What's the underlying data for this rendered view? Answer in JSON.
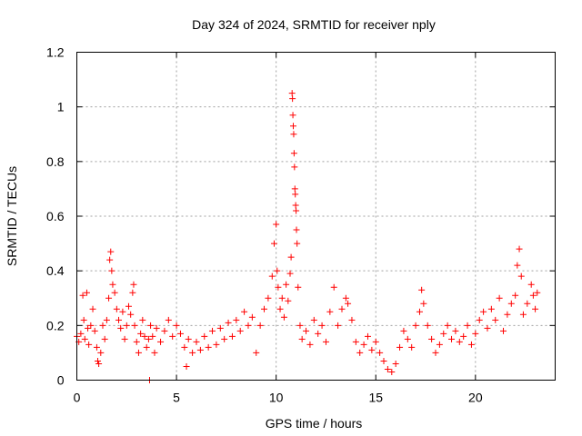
{
  "chart_data": {
    "type": "scatter",
    "title": "Day 324 of 2024, SRMTID for receiver nply",
    "xlabel": "GPS time / hours",
    "ylabel": "SRMTID / TECUs",
    "xlim": [
      0,
      24
    ],
    "ylim": [
      0,
      1.2
    ],
    "x_ticks": [
      0,
      5,
      10,
      15,
      20
    ],
    "x_tick_labels": [
      "0",
      "5",
      "10",
      "15",
      "20"
    ],
    "y_ticks": [
      0,
      0.2,
      0.4,
      0.6,
      0.8,
      1.0,
      1.2
    ],
    "y_tick_labels": [
      "0",
      "0.2",
      "0.4",
      "0.6",
      "0.8",
      "1",
      "1.2"
    ],
    "grid": true,
    "marker": "plus",
    "color": "#ff0000",
    "series": [
      {
        "name": "SRMTID",
        "points": [
          [
            0.0,
            0.16
          ],
          [
            0.1,
            0.14
          ],
          [
            0.2,
            0.17
          ],
          [
            0.3,
            0.31
          ],
          [
            0.35,
            0.22
          ],
          [
            0.4,
            0.15
          ],
          [
            0.5,
            0.32
          ],
          [
            0.55,
            0.19
          ],
          [
            0.6,
            0.13
          ],
          [
            0.7,
            0.2
          ],
          [
            0.8,
            0.26
          ],
          [
            0.9,
            0.18
          ],
          [
            1.0,
            0.12
          ],
          [
            1.05,
            0.07
          ],
          [
            1.1,
            0.06
          ],
          [
            1.2,
            0.1
          ],
          [
            1.3,
            0.2
          ],
          [
            1.4,
            0.15
          ],
          [
            1.5,
            0.22
          ],
          [
            1.6,
            0.3
          ],
          [
            1.65,
            0.44
          ],
          [
            1.7,
            0.47
          ],
          [
            1.75,
            0.4
          ],
          [
            1.8,
            0.35
          ],
          [
            1.9,
            0.32
          ],
          [
            2.0,
            0.26
          ],
          [
            2.1,
            0.22
          ],
          [
            2.2,
            0.19
          ],
          [
            2.3,
            0.25
          ],
          [
            2.4,
            0.15
          ],
          [
            2.5,
            0.2
          ],
          [
            2.6,
            0.27
          ],
          [
            2.7,
            0.24
          ],
          [
            2.8,
            0.32
          ],
          [
            2.85,
            0.35
          ],
          [
            2.9,
            0.2
          ],
          [
            3.0,
            0.14
          ],
          [
            3.1,
            0.1
          ],
          [
            3.2,
            0.17
          ],
          [
            3.3,
            0.22
          ],
          [
            3.4,
            0.16
          ],
          [
            3.5,
            0.12
          ],
          [
            3.6,
            0.15
          ],
          [
            3.65,
            0.0
          ],
          [
            3.7,
            0.2
          ],
          [
            3.8,
            0.16
          ],
          [
            3.9,
            0.1
          ],
          [
            4.0,
            0.19
          ],
          [
            4.2,
            0.14
          ],
          [
            4.4,
            0.18
          ],
          [
            4.6,
            0.22
          ],
          [
            4.8,
            0.16
          ],
          [
            5.0,
            0.2
          ],
          [
            5.2,
            0.17
          ],
          [
            5.4,
            0.12
          ],
          [
            5.5,
            0.05
          ],
          [
            5.6,
            0.15
          ],
          [
            5.8,
            0.1
          ],
          [
            6.0,
            0.14
          ],
          [
            6.2,
            0.11
          ],
          [
            6.4,
            0.16
          ],
          [
            6.6,
            0.12
          ],
          [
            6.8,
            0.18
          ],
          [
            7.0,
            0.13
          ],
          [
            7.2,
            0.19
          ],
          [
            7.4,
            0.15
          ],
          [
            7.6,
            0.21
          ],
          [
            7.8,
            0.16
          ],
          [
            8.0,
            0.22
          ],
          [
            8.2,
            0.18
          ],
          [
            8.4,
            0.25
          ],
          [
            8.6,
            0.2
          ],
          [
            8.8,
            0.23
          ],
          [
            9.0,
            0.1
          ],
          [
            9.2,
            0.2
          ],
          [
            9.4,
            0.26
          ],
          [
            9.6,
            0.3
          ],
          [
            9.8,
            0.38
          ],
          [
            9.9,
            0.5
          ],
          [
            10.0,
            0.57
          ],
          [
            10.05,
            0.4
          ],
          [
            10.1,
            0.34
          ],
          [
            10.2,
            0.26
          ],
          [
            10.3,
            0.3
          ],
          [
            10.4,
            0.23
          ],
          [
            10.5,
            0.35
          ],
          [
            10.6,
            0.29
          ],
          [
            10.7,
            0.39
          ],
          [
            10.75,
            0.45
          ],
          [
            10.8,
            1.05
          ],
          [
            10.82,
            1.03
          ],
          [
            10.84,
            0.97
          ],
          [
            10.86,
            0.93
          ],
          [
            10.88,
            0.9
          ],
          [
            10.9,
            0.83
          ],
          [
            10.92,
            0.78
          ],
          [
            10.94,
            0.7
          ],
          [
            10.96,
            0.68
          ],
          [
            10.98,
            0.64
          ],
          [
            11.0,
            0.62
          ],
          [
            11.02,
            0.55
          ],
          [
            11.05,
            0.5
          ],
          [
            11.1,
            0.34
          ],
          [
            11.2,
            0.2
          ],
          [
            11.3,
            0.15
          ],
          [
            11.5,
            0.18
          ],
          [
            11.7,
            0.13
          ],
          [
            11.9,
            0.22
          ],
          [
            12.1,
            0.17
          ],
          [
            12.3,
            0.2
          ],
          [
            12.5,
            0.14
          ],
          [
            12.7,
            0.25
          ],
          [
            12.9,
            0.34
          ],
          [
            13.1,
            0.2
          ],
          [
            13.3,
            0.26
          ],
          [
            13.5,
            0.3
          ],
          [
            13.6,
            0.28
          ],
          [
            13.8,
            0.22
          ],
          [
            14.0,
            0.14
          ],
          [
            14.2,
            0.1
          ],
          [
            14.4,
            0.13
          ],
          [
            14.6,
            0.16
          ],
          [
            14.8,
            0.11
          ],
          [
            15.0,
            0.14
          ],
          [
            15.2,
            0.1
          ],
          [
            15.4,
            0.07
          ],
          [
            15.6,
            0.04
          ],
          [
            15.8,
            0.03
          ],
          [
            16.0,
            0.06
          ],
          [
            16.2,
            0.12
          ],
          [
            16.4,
            0.18
          ],
          [
            16.6,
            0.15
          ],
          [
            16.8,
            0.12
          ],
          [
            17.0,
            0.2
          ],
          [
            17.2,
            0.25
          ],
          [
            17.3,
            0.33
          ],
          [
            17.4,
            0.28
          ],
          [
            17.6,
            0.2
          ],
          [
            17.8,
            0.15
          ],
          [
            18.0,
            0.1
          ],
          [
            18.2,
            0.13
          ],
          [
            18.4,
            0.17
          ],
          [
            18.6,
            0.2
          ],
          [
            18.8,
            0.15
          ],
          [
            19.0,
            0.18
          ],
          [
            19.2,
            0.14
          ],
          [
            19.4,
            0.16
          ],
          [
            19.6,
            0.2
          ],
          [
            19.8,
            0.13
          ],
          [
            20.0,
            0.17
          ],
          [
            20.2,
            0.22
          ],
          [
            20.4,
            0.25
          ],
          [
            20.6,
            0.19
          ],
          [
            20.8,
            0.26
          ],
          [
            21.0,
            0.22
          ],
          [
            21.2,
            0.3
          ],
          [
            21.4,
            0.18
          ],
          [
            21.6,
            0.24
          ],
          [
            21.8,
            0.28
          ],
          [
            22.0,
            0.31
          ],
          [
            22.1,
            0.42
          ],
          [
            22.2,
            0.48
          ],
          [
            22.3,
            0.38
          ],
          [
            22.4,
            0.24
          ],
          [
            22.6,
            0.28
          ],
          [
            22.8,
            0.35
          ],
          [
            22.9,
            0.31
          ],
          [
            23.0,
            0.26
          ],
          [
            23.1,
            0.32
          ]
        ]
      }
    ]
  }
}
